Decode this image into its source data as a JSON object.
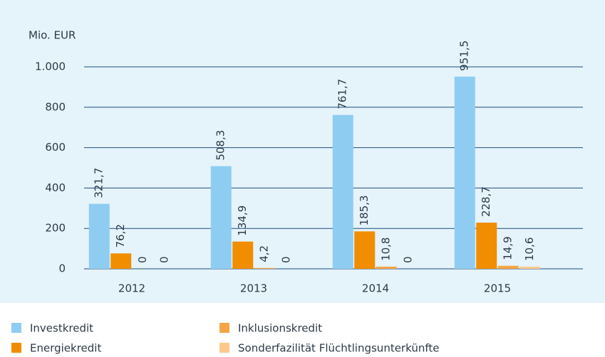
{
  "chart_data": {
    "type": "bar",
    "y_axis_label": "Mio. EUR",
    "categories": [
      "2012",
      "2013",
      "2014",
      "2015"
    ],
    "series": [
      {
        "name": "Investkredit",
        "color": "#8ecdf1",
        "values": [
          321.7,
          508.3,
          761.7,
          951.5
        ],
        "value_labels": [
          "321,7",
          "508,3",
          "761,7",
          "951,5"
        ]
      },
      {
        "name": "Energiekredit",
        "color": "#f18d00",
        "values": [
          76.2,
          134.9,
          185.3,
          228.7
        ],
        "value_labels": [
          "76,2",
          "134,9",
          "185,3",
          "228,7"
        ]
      },
      {
        "name": "Inklusionskredit",
        "color": "#f5a545",
        "values": [
          0,
          4.2,
          10.8,
          14.9
        ],
        "value_labels": [
          "0",
          "4,2",
          "10,8",
          "14,9"
        ]
      },
      {
        "name": "Sonderfazilität Flüchtlingsunterkünfte",
        "color": "#fcc98b",
        "values": [
          0,
          0,
          0,
          10.6
        ],
        "value_labels": [
          "0",
          "0",
          "0",
          "10,6"
        ]
      }
    ],
    "ylim": [
      0,
      1000
    ],
    "yticks": [
      0,
      200,
      400,
      600,
      800,
      {
        "value": 1000,
        "label": "1.000"
      }
    ],
    "grid": true
  }
}
